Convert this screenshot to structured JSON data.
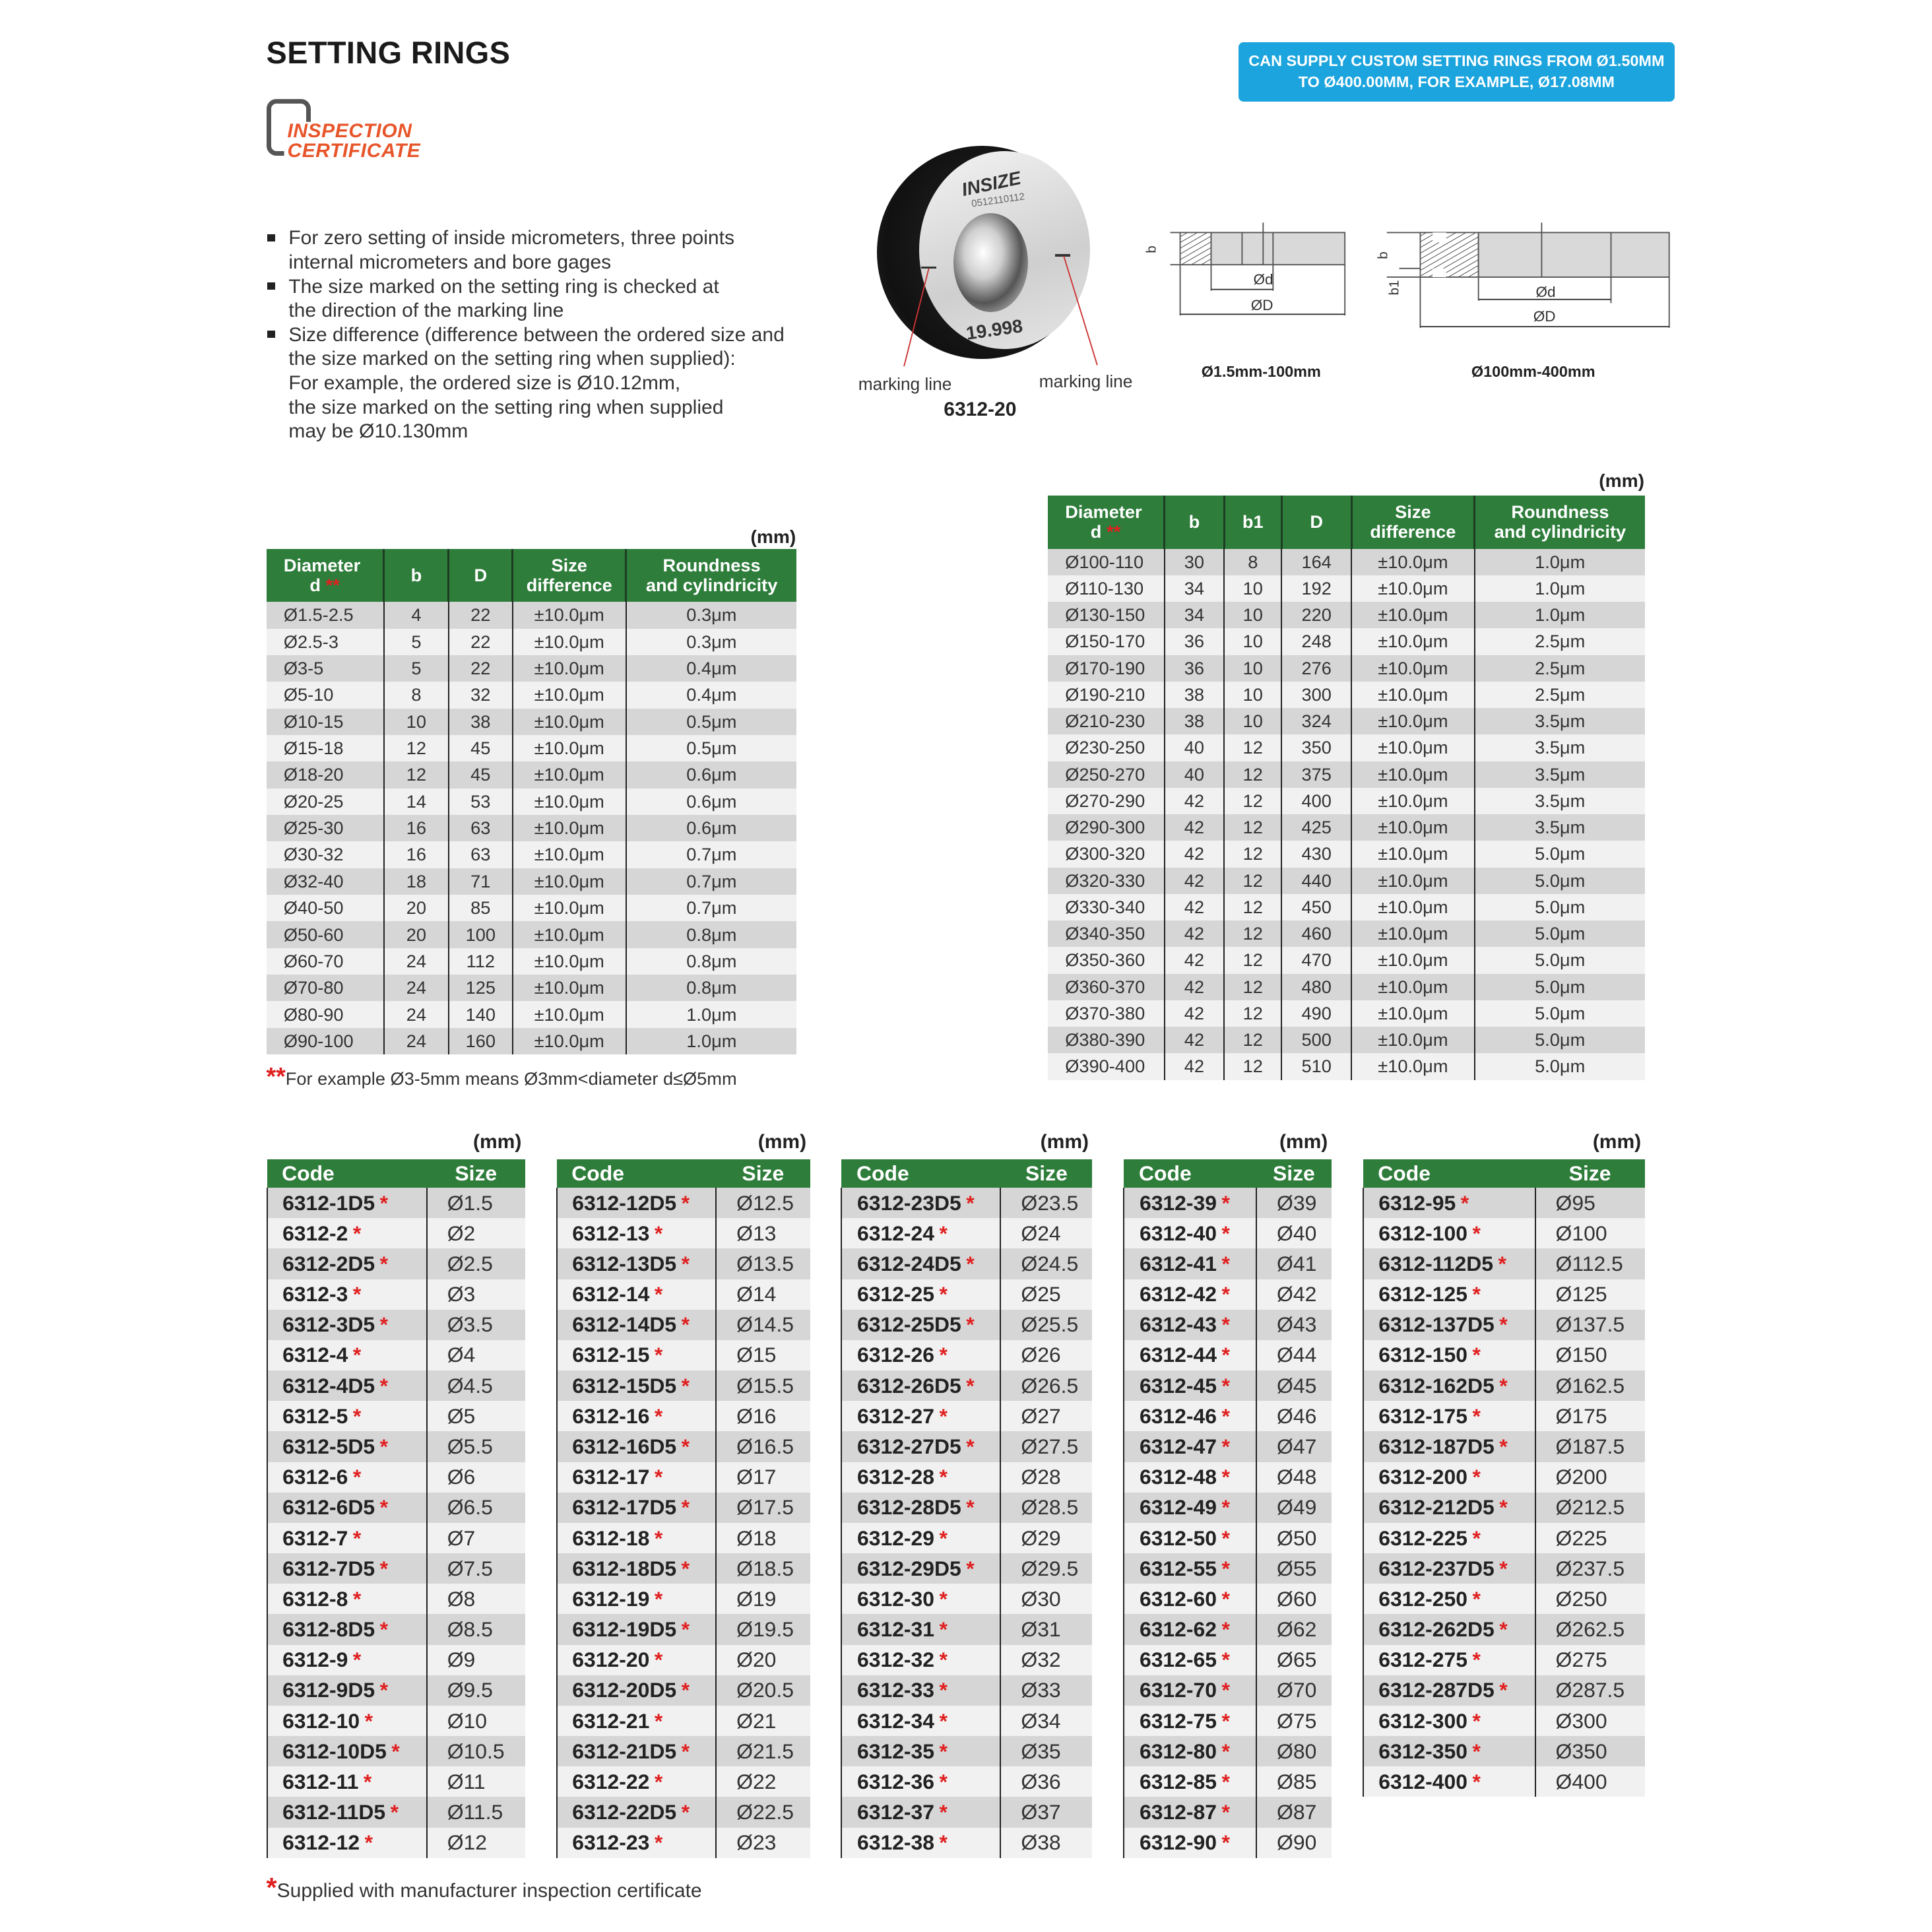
{
  "title": "SETTING RINGS",
  "logo": {
    "line1": "INSPECTION",
    "line2": "CERTIFICATE"
  },
  "banner": {
    "line1": "CAN SUPPLY CUSTOM SETTING RINGS FROM Ø1.50MM",
    "line2": "TO Ø400.00MM, FOR EXAMPLE, Ø17.08MM"
  },
  "bullets": [
    [
      "For zero setting of inside micrometers, three points",
      "internal micrometers and bore gages"
    ],
    [
      "The size marked on the setting ring is checked at",
      "the direction of the marking line"
    ],
    [
      "Size difference (difference between the ordered size and",
      "the size marked on the setting ring when supplied):",
      "For example, the ordered size is Ø10.12mm,",
      "the size marked on the setting ring when supplied",
      "may be Ø10.130mm"
    ]
  ],
  "product_image": {
    "brand": "INSIZE",
    "serial": "0512110112",
    "marking": "19.998",
    "label_left": "marking line",
    "label_right": "marking line",
    "model": "6312-20"
  },
  "diagrams": {
    "small": {
      "caption": "Ø1.5mm-100mm",
      "b": "b",
      "d": "Ød",
      "D": "ØD"
    },
    "large": {
      "caption": "Ø100mm-400mm",
      "b": "b",
      "b1": "b1",
      "d": "Ød",
      "D": "ØD"
    }
  },
  "unit": "(mm)",
  "spec_table_small": {
    "headers": [
      "Diameter\nd",
      "b",
      "D",
      "Size\ndifference",
      "Roundness\nand cylindricity"
    ],
    "rows": [
      [
        "Ø1.5-2.5",
        "4",
        "22",
        "±10.0μm",
        "0.3μm"
      ],
      [
        "Ø2.5-3",
        "5",
        "22",
        "±10.0μm",
        "0.3μm"
      ],
      [
        "Ø3-5",
        "5",
        "22",
        "±10.0μm",
        "0.4μm"
      ],
      [
        "Ø5-10",
        "8",
        "32",
        "±10.0μm",
        "0.4μm"
      ],
      [
        "Ø10-15",
        "10",
        "38",
        "±10.0μm",
        "0.5μm"
      ],
      [
        "Ø15-18",
        "12",
        "45",
        "±10.0μm",
        "0.5μm"
      ],
      [
        "Ø18-20",
        "12",
        "45",
        "±10.0μm",
        "0.6μm"
      ],
      [
        "Ø20-25",
        "14",
        "53",
        "±10.0μm",
        "0.6μm"
      ],
      [
        "Ø25-30",
        "16",
        "63",
        "±10.0μm",
        "0.6μm"
      ],
      [
        "Ø30-32",
        "16",
        "63",
        "±10.0μm",
        "0.7μm"
      ],
      [
        "Ø32-40",
        "18",
        "71",
        "±10.0μm",
        "0.7μm"
      ],
      [
        "Ø40-50",
        "20",
        "85",
        "±10.0μm",
        "0.7μm"
      ],
      [
        "Ø50-60",
        "20",
        "100",
        "±10.0μm",
        "0.8μm"
      ],
      [
        "Ø60-70",
        "24",
        "112",
        "±10.0μm",
        "0.8μm"
      ],
      [
        "Ø70-80",
        "24",
        "125",
        "±10.0μm",
        "0.8μm"
      ],
      [
        "Ø80-90",
        "24",
        "140",
        "±10.0μm",
        "1.0μm"
      ],
      [
        "Ø90-100",
        "24",
        "160",
        "±10.0μm",
        "1.0μm"
      ]
    ],
    "footnote_mark": "**",
    "footnote": "For example Ø3-5mm means Ø3mm<diameter d≤Ø5mm"
  },
  "spec_table_large": {
    "headers": [
      "Diameter\nd",
      "b",
      "b1",
      "D",
      "Size\ndifference",
      "Roundness\nand cylindricity"
    ],
    "rows": [
      [
        "Ø100-110",
        "30",
        "8",
        "164",
        "±10.0μm",
        "1.0μm"
      ],
      [
        "Ø110-130",
        "34",
        "10",
        "192",
        "±10.0μm",
        "1.0μm"
      ],
      [
        "Ø130-150",
        "34",
        "10",
        "220",
        "±10.0μm",
        "1.0μm"
      ],
      [
        "Ø150-170",
        "36",
        "10",
        "248",
        "±10.0μm",
        "2.5μm"
      ],
      [
        "Ø170-190",
        "36",
        "10",
        "276",
        "±10.0μm",
        "2.5μm"
      ],
      [
        "Ø190-210",
        "38",
        "10",
        "300",
        "±10.0μm",
        "2.5μm"
      ],
      [
        "Ø210-230",
        "38",
        "10",
        "324",
        "±10.0μm",
        "3.5μm"
      ],
      [
        "Ø230-250",
        "40",
        "12",
        "350",
        "±10.0μm",
        "3.5μm"
      ],
      [
        "Ø250-270",
        "40",
        "12",
        "375",
        "±10.0μm",
        "3.5μm"
      ],
      [
        "Ø270-290",
        "42",
        "12",
        "400",
        "±10.0μm",
        "3.5μm"
      ],
      [
        "Ø290-300",
        "42",
        "12",
        "425",
        "±10.0μm",
        "3.5μm"
      ],
      [
        "Ø300-320",
        "42",
        "12",
        "430",
        "±10.0μm",
        "5.0μm"
      ],
      [
        "Ø320-330",
        "42",
        "12",
        "440",
        "±10.0μm",
        "5.0μm"
      ],
      [
        "Ø330-340",
        "42",
        "12",
        "450",
        "±10.0μm",
        "5.0μm"
      ],
      [
        "Ø340-350",
        "42",
        "12",
        "460",
        "±10.0μm",
        "5.0μm"
      ],
      [
        "Ø350-360",
        "42",
        "12",
        "470",
        "±10.0μm",
        "5.0μm"
      ],
      [
        "Ø360-370",
        "42",
        "12",
        "480",
        "±10.0μm",
        "5.0μm"
      ],
      [
        "Ø370-380",
        "42",
        "12",
        "490",
        "±10.0μm",
        "5.0μm"
      ],
      [
        "Ø380-390",
        "42",
        "12",
        "500",
        "±10.0μm",
        "5.0μm"
      ],
      [
        "Ø390-400",
        "42",
        "12",
        "510",
        "±10.0μm",
        "5.0μm"
      ]
    ]
  },
  "code_tables": {
    "headers": [
      "Code",
      "Size"
    ],
    "star": "*",
    "tables": [
      [
        [
          "6312-1D5",
          "Ø1.5"
        ],
        [
          "6312-2",
          "Ø2"
        ],
        [
          "6312-2D5",
          "Ø2.5"
        ],
        [
          "6312-3",
          "Ø3"
        ],
        [
          "6312-3D5",
          "Ø3.5"
        ],
        [
          "6312-4",
          "Ø4"
        ],
        [
          "6312-4D5",
          "Ø4.5"
        ],
        [
          "6312-5",
          "Ø5"
        ],
        [
          "6312-5D5",
          "Ø5.5"
        ],
        [
          "6312-6",
          "Ø6"
        ],
        [
          "6312-6D5",
          "Ø6.5"
        ],
        [
          "6312-7",
          "Ø7"
        ],
        [
          "6312-7D5",
          "Ø7.5"
        ],
        [
          "6312-8",
          "Ø8"
        ],
        [
          "6312-8D5",
          "Ø8.5"
        ],
        [
          "6312-9",
          "Ø9"
        ],
        [
          "6312-9D5",
          "Ø9.5"
        ],
        [
          "6312-10",
          "Ø10"
        ],
        [
          "6312-10D5",
          "Ø10.5"
        ],
        [
          "6312-11",
          "Ø11"
        ],
        [
          "6312-11D5",
          "Ø11.5"
        ],
        [
          "6312-12",
          "Ø12"
        ]
      ],
      [
        [
          "6312-12D5",
          "Ø12.5"
        ],
        [
          "6312-13",
          "Ø13"
        ],
        [
          "6312-13D5",
          "Ø13.5"
        ],
        [
          "6312-14",
          "Ø14"
        ],
        [
          "6312-14D5",
          "Ø14.5"
        ],
        [
          "6312-15",
          "Ø15"
        ],
        [
          "6312-15D5",
          "Ø15.5"
        ],
        [
          "6312-16",
          "Ø16"
        ],
        [
          "6312-16D5",
          "Ø16.5"
        ],
        [
          "6312-17",
          "Ø17"
        ],
        [
          "6312-17D5",
          "Ø17.5"
        ],
        [
          "6312-18",
          "Ø18"
        ],
        [
          "6312-18D5",
          "Ø18.5"
        ],
        [
          "6312-19",
          "Ø19"
        ],
        [
          "6312-19D5",
          "Ø19.5"
        ],
        [
          "6312-20",
          "Ø20"
        ],
        [
          "6312-20D5",
          "Ø20.5"
        ],
        [
          "6312-21",
          "Ø21"
        ],
        [
          "6312-21D5",
          "Ø21.5"
        ],
        [
          "6312-22",
          "Ø22"
        ],
        [
          "6312-22D5",
          "Ø22.5"
        ],
        [
          "6312-23",
          "Ø23"
        ]
      ],
      [
        [
          "6312-23D5",
          "Ø23.5"
        ],
        [
          "6312-24",
          "Ø24"
        ],
        [
          "6312-24D5",
          "Ø24.5"
        ],
        [
          "6312-25",
          "Ø25"
        ],
        [
          "6312-25D5",
          "Ø25.5"
        ],
        [
          "6312-26",
          "Ø26"
        ],
        [
          "6312-26D5",
          "Ø26.5"
        ],
        [
          "6312-27",
          "Ø27"
        ],
        [
          "6312-27D5",
          "Ø27.5"
        ],
        [
          "6312-28",
          "Ø28"
        ],
        [
          "6312-28D5",
          "Ø28.5"
        ],
        [
          "6312-29",
          "Ø29"
        ],
        [
          "6312-29D5",
          "Ø29.5"
        ],
        [
          "6312-30",
          "Ø30"
        ],
        [
          "6312-31",
          "Ø31"
        ],
        [
          "6312-32",
          "Ø32"
        ],
        [
          "6312-33",
          "Ø33"
        ],
        [
          "6312-34",
          "Ø34"
        ],
        [
          "6312-35",
          "Ø35"
        ],
        [
          "6312-36",
          "Ø36"
        ],
        [
          "6312-37",
          "Ø37"
        ],
        [
          "6312-38",
          "Ø38"
        ]
      ],
      [
        [
          "6312-39",
          "Ø39"
        ],
        [
          "6312-40",
          "Ø40"
        ],
        [
          "6312-41",
          "Ø41"
        ],
        [
          "6312-42",
          "Ø42"
        ],
        [
          "6312-43",
          "Ø43"
        ],
        [
          "6312-44",
          "Ø44"
        ],
        [
          "6312-45",
          "Ø45"
        ],
        [
          "6312-46",
          "Ø46"
        ],
        [
          "6312-47",
          "Ø47"
        ],
        [
          "6312-48",
          "Ø48"
        ],
        [
          "6312-49",
          "Ø49"
        ],
        [
          "6312-50",
          "Ø50"
        ],
        [
          "6312-55",
          "Ø55"
        ],
        [
          "6312-60",
          "Ø60"
        ],
        [
          "6312-62",
          "Ø62"
        ],
        [
          "6312-65",
          "Ø65"
        ],
        [
          "6312-70",
          "Ø70"
        ],
        [
          "6312-75",
          "Ø75"
        ],
        [
          "6312-80",
          "Ø80"
        ],
        [
          "6312-85",
          "Ø85"
        ],
        [
          "6312-87",
          "Ø87"
        ],
        [
          "6312-90",
          "Ø90"
        ]
      ],
      [
        [
          "6312-95",
          "Ø95"
        ],
        [
          "6312-100",
          "Ø100"
        ],
        [
          "6312-112D5",
          "Ø112.5"
        ],
        [
          "6312-125",
          "Ø125"
        ],
        [
          "6312-137D5",
          "Ø137.5"
        ],
        [
          "6312-150",
          "Ø150"
        ],
        [
          "6312-162D5",
          "Ø162.5"
        ],
        [
          "6312-175",
          "Ø175"
        ],
        [
          "6312-187D5",
          "Ø187.5"
        ],
        [
          "6312-200",
          "Ø200"
        ],
        [
          "6312-212D5",
          "Ø212.5"
        ],
        [
          "6312-225",
          "Ø225"
        ],
        [
          "6312-237D5",
          "Ø237.5"
        ],
        [
          "6312-250",
          "Ø250"
        ],
        [
          "6312-262D5",
          "Ø262.5"
        ],
        [
          "6312-275",
          "Ø275"
        ],
        [
          "6312-287D5",
          "Ø287.5"
        ],
        [
          "6312-300",
          "Ø300"
        ],
        [
          "6312-350",
          "Ø350"
        ],
        [
          "6312-400",
          "Ø400"
        ]
      ]
    ],
    "footnote": "Supplied with manufacturer inspection certificate"
  },
  "colors": {
    "header_green": "#2e7d3b",
    "banner_blue": "#1ba4dd",
    "logo_orange": "#e8552a",
    "star_red": "#e02020"
  }
}
